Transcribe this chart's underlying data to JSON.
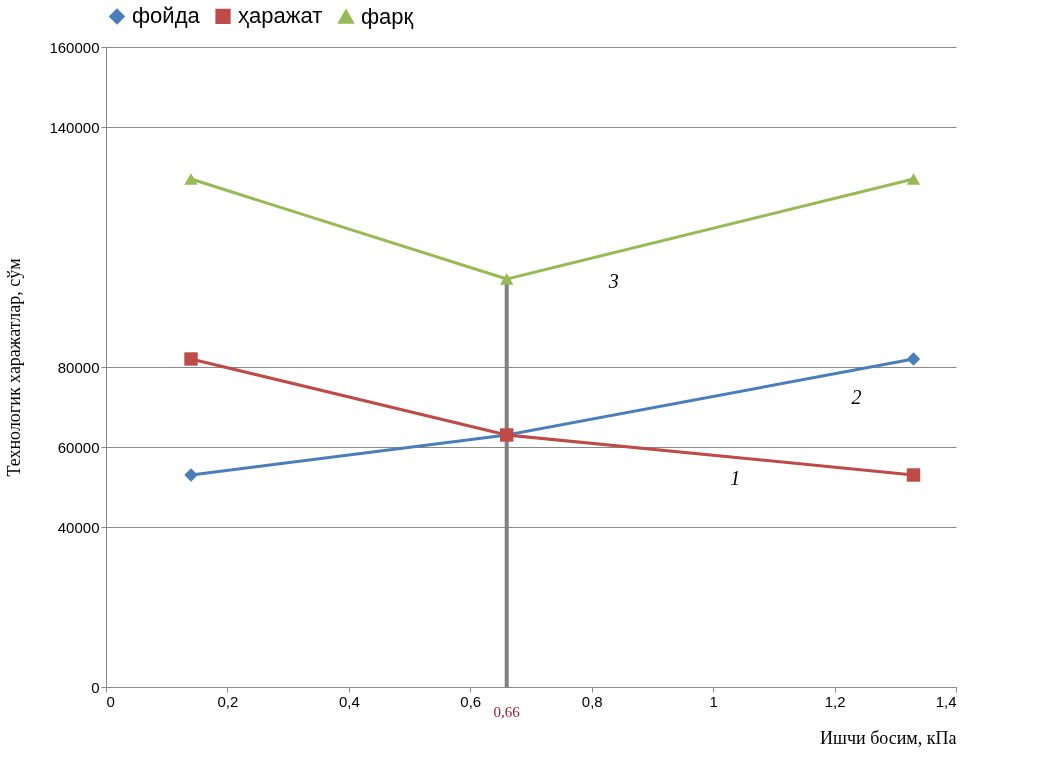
{
  "chart_data": {
    "type": "line",
    "xlabel": "Ишчи босим, кПа",
    "ylabel": "Технологик харажатлар, сўм",
    "xlim": [
      0,
      1.4
    ],
    "xticks": [
      0,
      {
        "value": 0.2,
        "label": "0,2"
      },
      {
        "value": 0.4,
        "label": "0,4"
      },
      {
        "value": 0.6,
        "label": "0,6"
      },
      {
        "value": 0.8,
        "label": "0,8"
      },
      1,
      {
        "value": 1.2,
        "label": "1,2"
      },
      {
        "value": 1.4,
        "label": "1,4"
      }
    ],
    "ylim": [
      0,
      160000
    ],
    "yticks": [
      0,
      40000,
      60000,
      80000,
      140000,
      160000
    ],
    "grid": "y",
    "legend": "top",
    "x": [
      0.14,
      0.66,
      1.33
    ],
    "series": [
      {
        "name": "фойда",
        "color": "#4a7ebb",
        "marker": "diamond",
        "values": [
          53000,
          63000,
          82000
        ]
      },
      {
        "name": "ҳаражат",
        "color": "#be4b48",
        "marker": "square",
        "values": [
          82000,
          63000,
          53000
        ]
      },
      {
        "name": "фарқ",
        "color": "#98b954",
        "marker": "triangle",
        "values": [
          127000,
          102000,
          127000
        ]
      }
    ],
    "ref_lines": [
      {
        "axis": "x",
        "value": 0.66,
        "label": "0,66",
        "color": "#808080"
      }
    ],
    "annotations": [
      {
        "text": "1",
        "x": 1.0,
        "y": 57900
      },
      {
        "text": "2",
        "x": 1.2,
        "y": 78300
      },
      {
        "text": "3",
        "x": 0.8,
        "y": 107200
      }
    ]
  }
}
